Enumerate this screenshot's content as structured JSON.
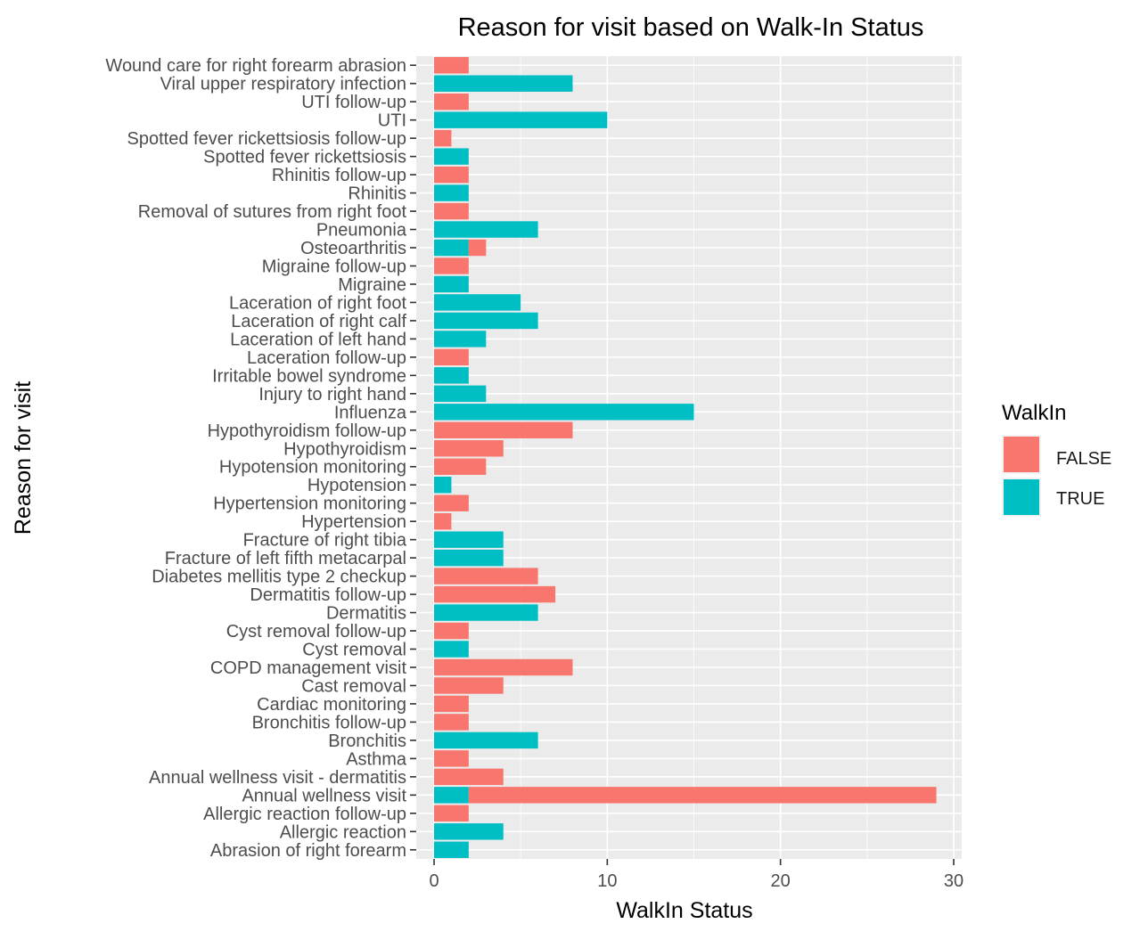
{
  "chart_data": {
    "type": "bar",
    "orientation": "horizontal",
    "stacked": true,
    "title": "Reason for visit based on Walk-In Status",
    "xlabel": "WalkIn Status",
    "ylabel": "Reason for visit",
    "xlim": [
      0,
      30
    ],
    "x_ticks": [
      "0",
      "10",
      "20",
      "30"
    ],
    "grid": true,
    "legend": {
      "title": "WalkIn",
      "position": "right",
      "entries": [
        {
          "name": "FALSE",
          "color": "#F8766D"
        },
        {
          "name": "TRUE",
          "color": "#00BFC4"
        }
      ]
    },
    "categories": [
      "Wound care for right forearm abrasion",
      "Viral upper respiratory infection",
      "UTI follow-up",
      "UTI",
      "Spotted fever rickettsiosis follow-up",
      "Spotted fever rickettsiosis",
      "Rhinitis follow-up",
      "Rhinitis",
      "Removal of sutures from right foot",
      "Pneumonia",
      "Osteoarthritis",
      "Migraine follow-up",
      "Migraine",
      "Laceration of right foot",
      "Laceration of right calf",
      "Laceration of left hand",
      "Laceration follow-up",
      "Irritable bowel syndrome",
      "Injury to right hand",
      "Influenza",
      "Hypothyroidism follow-up",
      "Hypothyroidism",
      "Hypotension monitoring",
      "Hypotension",
      "Hypertension monitoring",
      "Hypertension",
      "Fracture of right tibia",
      "Fracture of left fifth metacarpal",
      "Diabetes mellitis type 2 checkup",
      "Dermatitis follow-up",
      "Dermatitis",
      "Cyst removal follow-up",
      "Cyst removal",
      "COPD management visit",
      "Cast removal",
      "Cardiac monitoring",
      "Bronchitis follow-up",
      "Bronchitis",
      "Asthma",
      "Annual wellness visit - dermatitis",
      "Annual wellness visit",
      "Allergic reaction follow-up",
      "Allergic reaction",
      "Abrasion of right forearm"
    ],
    "series": [
      {
        "name": "FALSE",
        "color": "#F8766D",
        "values": [
          2,
          0,
          2,
          0,
          1,
          0,
          2,
          0,
          2,
          0,
          1,
          2,
          0,
          0,
          0,
          0,
          2,
          0,
          0,
          0,
          8,
          4,
          3,
          0,
          2,
          1,
          0,
          0,
          6,
          7,
          0,
          2,
          0,
          8,
          4,
          2,
          2,
          0,
          2,
          4,
          27,
          2,
          0,
          0
        ]
      },
      {
        "name": "TRUE",
        "color": "#00BFC4",
        "values": [
          0,
          8,
          0,
          10,
          0,
          2,
          0,
          2,
          0,
          6,
          2,
          0,
          2,
          5,
          6,
          3,
          0,
          2,
          3,
          15,
          0,
          0,
          0,
          1,
          0,
          0,
          4,
          4,
          0,
          0,
          6,
          0,
          2,
          0,
          0,
          0,
          0,
          6,
          0,
          0,
          2,
          0,
          4,
          2
        ]
      }
    ]
  }
}
